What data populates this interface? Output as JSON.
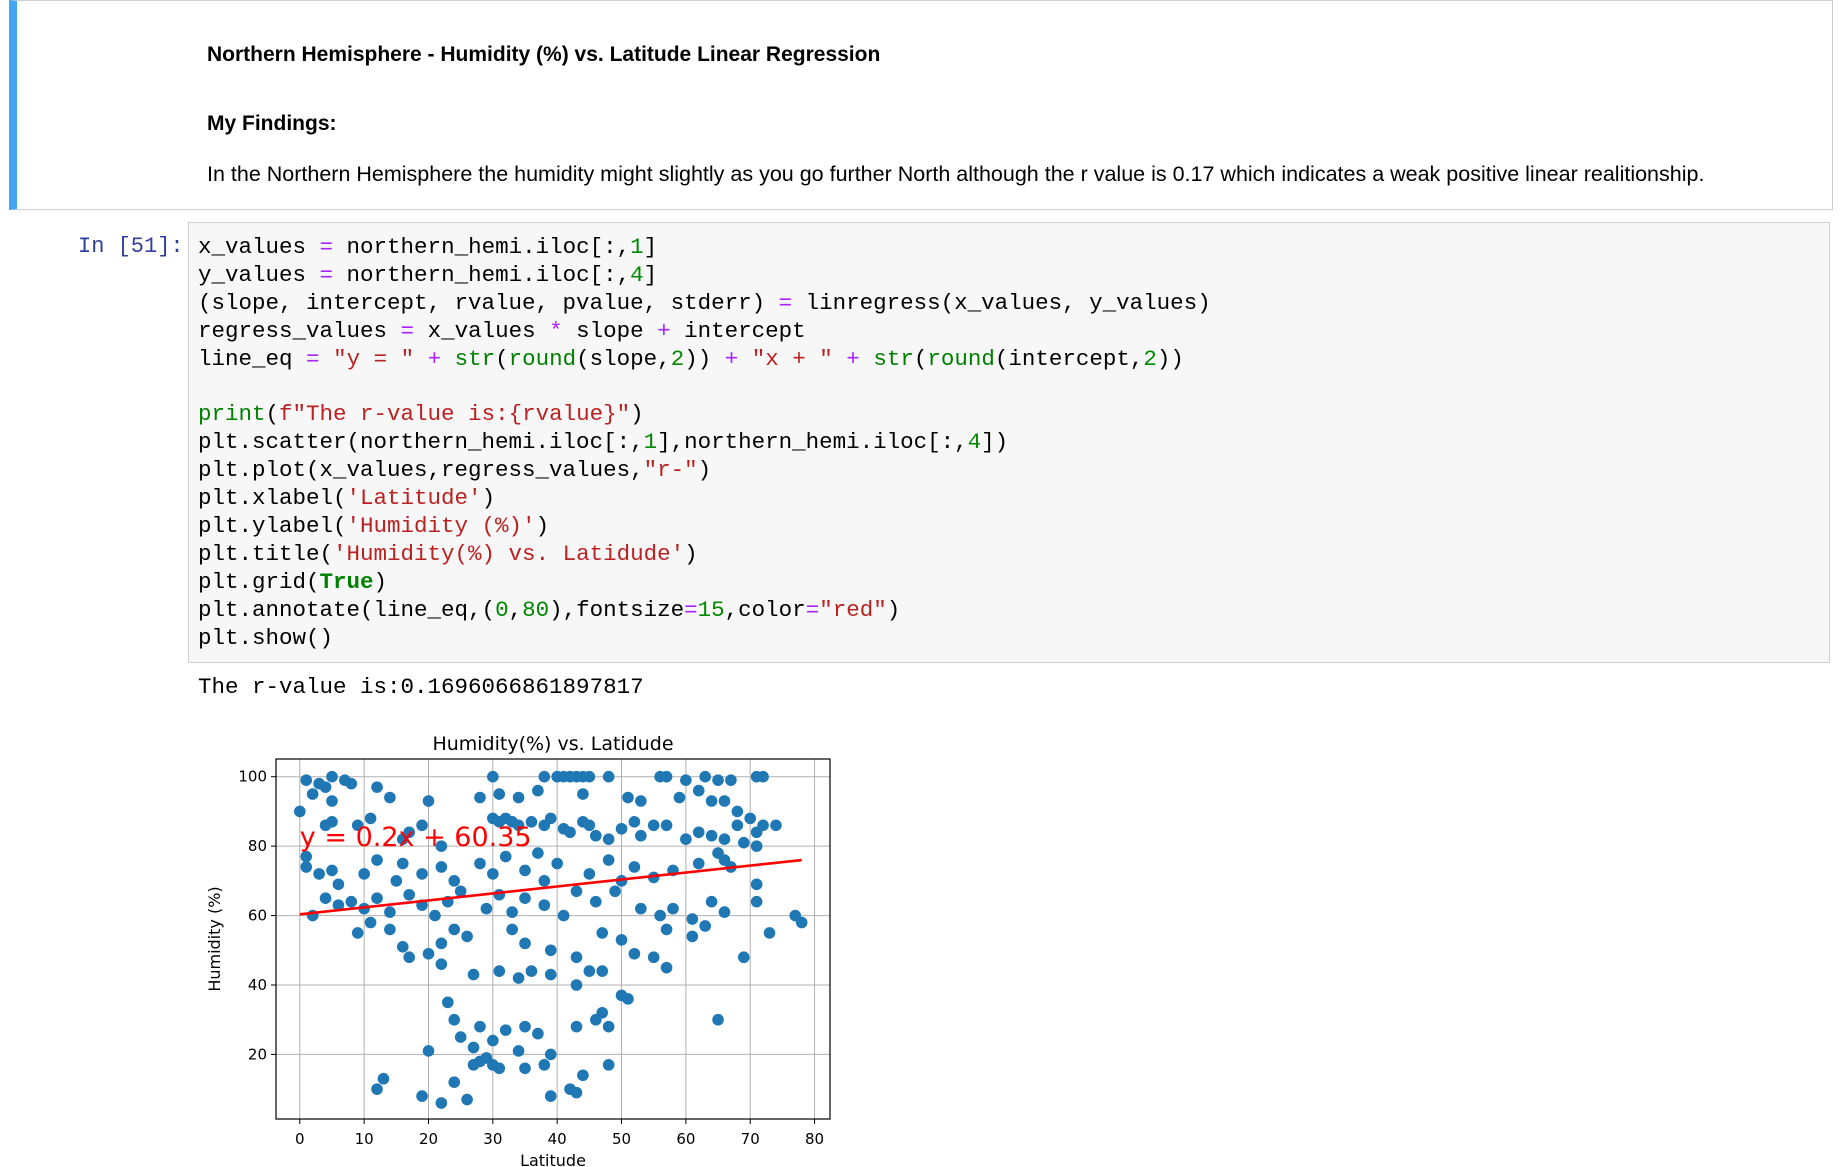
{
  "markdown_cell": {
    "title": "Northern Hemisphere - Humidity (%) vs. Latitude Linear Regression",
    "subtitle": "My Findings:",
    "text": "In the Northern Hemisphere the humidity might slightly as you go further North although the r value is 0.17 which indicates a weak positive linear realitionship."
  },
  "code_cell": {
    "prompt": "In [51]:",
    "blocks": [
      [
        "x_values = northern_hemi.iloc[:,1]",
        "y_values = northern_hemi.iloc[:,4]",
        "(slope, intercept, rvalue, pvalue, stderr) = linregress(x_values, y_values)",
        "regress_values = x_values * slope + intercept",
        "line_eq = \"y = \" + str(round(slope,2)) + \"x + \" + str(round(intercept,2))"
      ],
      [
        "print(f\"The r-value is:{rvalue}\")",
        "plt.scatter(northern_hemi.iloc[:,1],northern_hemi.iloc[:,4])",
        "plt.plot(x_values,regress_values,\"r-\")",
        "plt.xlabel('Latitude')",
        "plt.ylabel('Humidity (%)')",
        "plt.title('Humidity(%) vs. Latidude')",
        "plt.grid(True)",
        "plt.annotate(line_eq,(0,80),fontsize=15,color=\"red\")",
        "plt.show()"
      ]
    ],
    "output": "The r-value is:0.1696066861897817"
  },
  "chart_data": {
    "type": "scatter",
    "title": "Humidity(%) vs. Latidude",
    "xlabel": "Latitude",
    "ylabel": "Humidity (%)",
    "xlim": [
      -3.7,
      82.4
    ],
    "ylim": [
      1.4,
      105.1
    ],
    "xticks": [
      0,
      10,
      20,
      30,
      40,
      50,
      60,
      70,
      80
    ],
    "yticks": [
      20,
      40,
      60,
      80,
      100
    ],
    "grid": true,
    "series": [
      {
        "color": "#1f77b4",
        "x": [
          1,
          3,
          4,
          5,
          7,
          8,
          12,
          20,
          30,
          38,
          40,
          41,
          42,
          43,
          44,
          45,
          48,
          56,
          57,
          60,
          63,
          65,
          67,
          71,
          72,
          0,
          2,
          5,
          14,
          28,
          31,
          34,
          37,
          44,
          51,
          53,
          59,
          62,
          64,
          66,
          68,
          4,
          5,
          9,
          11,
          16,
          17,
          19,
          22,
          30,
          31,
          32,
          33,
          34,
          36,
          38,
          39,
          41,
          42,
          44,
          45,
          46,
          48,
          50,
          52,
          53,
          55,
          57,
          60,
          62,
          64,
          66,
          68,
          70,
          71,
          72,
          74,
          69,
          71,
          65,
          1,
          1,
          3,
          5,
          6,
          10,
          12,
          15,
          16,
          19,
          22,
          24,
          28,
          30,
          32,
          35,
          37,
          38,
          40,
          45,
          48,
          50,
          52,
          55,
          58,
          62,
          66,
          67,
          2,
          4,
          6,
          8,
          10,
          12,
          14,
          17,
          19,
          21,
          23,
          25,
          29,
          31,
          33,
          35,
          38,
          41,
          43,
          46,
          49,
          53,
          56,
          58,
          61,
          64,
          66,
          71,
          71,
          77,
          78,
          9,
          11,
          14,
          16,
          17,
          20,
          22,
          24,
          26,
          33,
          35,
          39,
          43,
          47,
          50,
          52,
          55,
          57,
          61,
          63,
          73,
          69,
          22,
          27,
          31,
          34,
          36,
          39,
          43,
          45,
          50,
          51,
          57,
          47,
          20,
          23,
          24,
          25,
          27,
          28,
          30,
          32,
          34,
          35,
          37,
          39,
          43,
          46,
          47,
          48,
          65,
          12,
          13,
          19,
          22,
          24,
          26,
          27,
          28,
          29,
          30,
          31,
          35,
          38,
          39,
          42,
          43,
          44,
          48
        ],
        "values": [
          99,
          98,
          97,
          100,
          99,
          98,
          97,
          93,
          100,
          100,
          100,
          100,
          100,
          100,
          100,
          100,
          100,
          100,
          100,
          99,
          100,
          99,
          99,
          100,
          100,
          90,
          95,
          93,
          94,
          94,
          95,
          94,
          96,
          95,
          94,
          93,
          94,
          96,
          93,
          93,
          90,
          86,
          87,
          86,
          88,
          82,
          84,
          86,
          80,
          88,
          87,
          88,
          87,
          86,
          87,
          86,
          88,
          85,
          84,
          87,
          86,
          83,
          82,
          85,
          87,
          83,
          86,
          86,
          82,
          84,
          83,
          82,
          86,
          88,
          84,
          86,
          86,
          81,
          80,
          78,
          77,
          74,
          72,
          73,
          69,
          72,
          76,
          70,
          75,
          72,
          74,
          70,
          75,
          72,
          77,
          73,
          78,
          70,
          75,
          72,
          76,
          70,
          74,
          71,
          73,
          75,
          76,
          74,
          60,
          65,
          63,
          64,
          62,
          65,
          61,
          66,
          63,
          60,
          64,
          67,
          62,
          66,
          61,
          65,
          63,
          60,
          67,
          64,
          67,
          62,
          60,
          62,
          59,
          64,
          61,
          64,
          69,
          60,
          58,
          55,
          58,
          56,
          51,
          48,
          49,
          52,
          56,
          54,
          56,
          52,
          50,
          48,
          55,
          53,
          49,
          48,
          56,
          54,
          57,
          55,
          48,
          46,
          43,
          44,
          42,
          44,
          43,
          40,
          44,
          37,
          36,
          45,
          44,
          21,
          35,
          30,
          25,
          22,
          28,
          24,
          27,
          21,
          28,
          26,
          20,
          28,
          30,
          32,
          28,
          30,
          10,
          13,
          8,
          6,
          12,
          7,
          17,
          18,
          19,
          17,
          16,
          16,
          17,
          8,
          10,
          9,
          14,
          17
        ]
      },
      {
        "color": "#ff0000",
        "x": [
          0,
          78
        ],
        "values": [
          60.35,
          76
        ]
      }
    ],
    "annotation": {
      "text": "y = 0.2x + 60.35",
      "x": 0,
      "y": 80,
      "color": "#ff0000"
    }
  }
}
